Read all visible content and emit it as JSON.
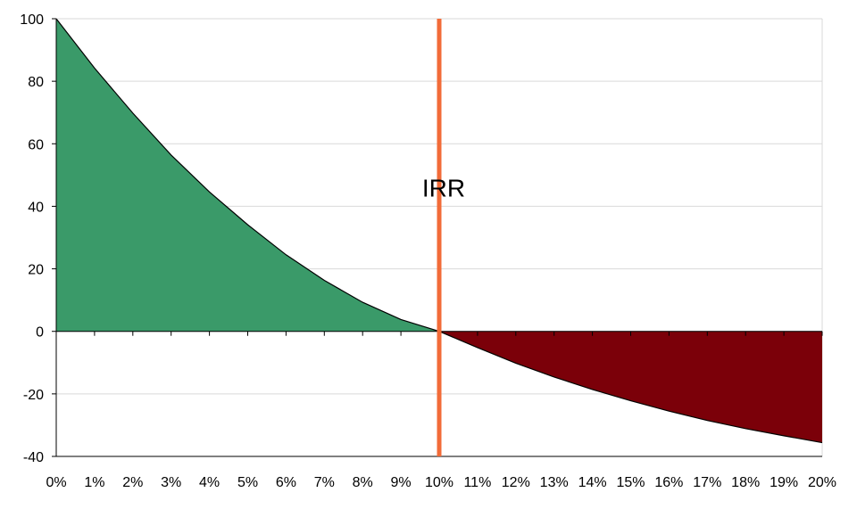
{
  "chart_data": {
    "type": "area",
    "title": "",
    "xlabel": "",
    "ylabel": "",
    "xlim": [
      0,
      20
    ],
    "ylim": [
      -40,
      100
    ],
    "x_ticks": [
      "0%",
      "1%",
      "2%",
      "3%",
      "4%",
      "5%",
      "6%",
      "7%",
      "8%",
      "9%",
      "10%",
      "11%",
      "12%",
      "13%",
      "14%",
      "15%",
      "16%",
      "17%",
      "18%",
      "19%",
      "20%"
    ],
    "y_ticks": [
      100,
      80,
      60,
      40,
      20,
      0,
      -20,
      -40
    ],
    "grid": true,
    "legend": "none",
    "series": [
      {
        "x": [
          0,
          1,
          2,
          3,
          4,
          5,
          6,
          7,
          8,
          9,
          10,
          11,
          12,
          13,
          14,
          15,
          16,
          17,
          18,
          19,
          20
        ],
        "values": [
          100,
          84.2,
          69.8,
          56.4,
          44.6,
          34.1,
          24.5,
          16.3,
          9.3,
          3.8,
          0,
          -5.2,
          -10.2,
          -14.6,
          -18.6,
          -22.2,
          -25.5,
          -28.5,
          -31.1,
          -33.4,
          -35.6
        ],
        "positive_color": "#3a9a69",
        "negative_color": "#7b0009"
      }
    ],
    "annotations": [
      {
        "text": "IRR",
        "x": 10,
        "y": 46,
        "line_x": 10,
        "color": "#f26b38"
      }
    ]
  }
}
